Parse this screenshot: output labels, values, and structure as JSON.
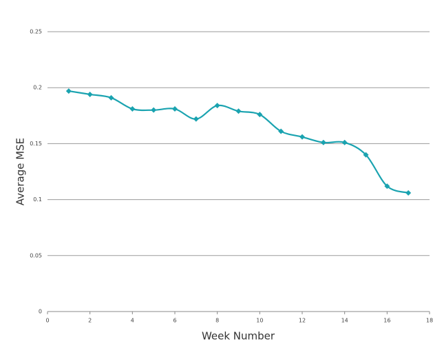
{
  "chart_data": {
    "type": "line",
    "xlabel": "Week Number",
    "ylabel": "Average MSE",
    "x": [
      1,
      2,
      3,
      4,
      5,
      6,
      7,
      8,
      9,
      10,
      11,
      12,
      13,
      14,
      15,
      16,
      17
    ],
    "series": [
      {
        "color": "#1aa3b0",
        "values": [
          0.197,
          0.194,
          0.191,
          0.181,
          0.18,
          0.181,
          0.172,
          0.184,
          0.179,
          0.176,
          0.161,
          0.156,
          0.151,
          0.151,
          0.14,
          0.112,
          0.106
        ]
      }
    ],
    "xlim": [
      0,
      18
    ],
    "xticks": [
      0,
      2,
      4,
      6,
      8,
      10,
      12,
      14,
      16,
      18
    ],
    "ylim": [
      0,
      0.25
    ],
    "yticks": [
      0,
      0.05,
      0.1,
      0.15,
      0.2,
      0.25
    ],
    "grid": true,
    "smooth": true
  }
}
